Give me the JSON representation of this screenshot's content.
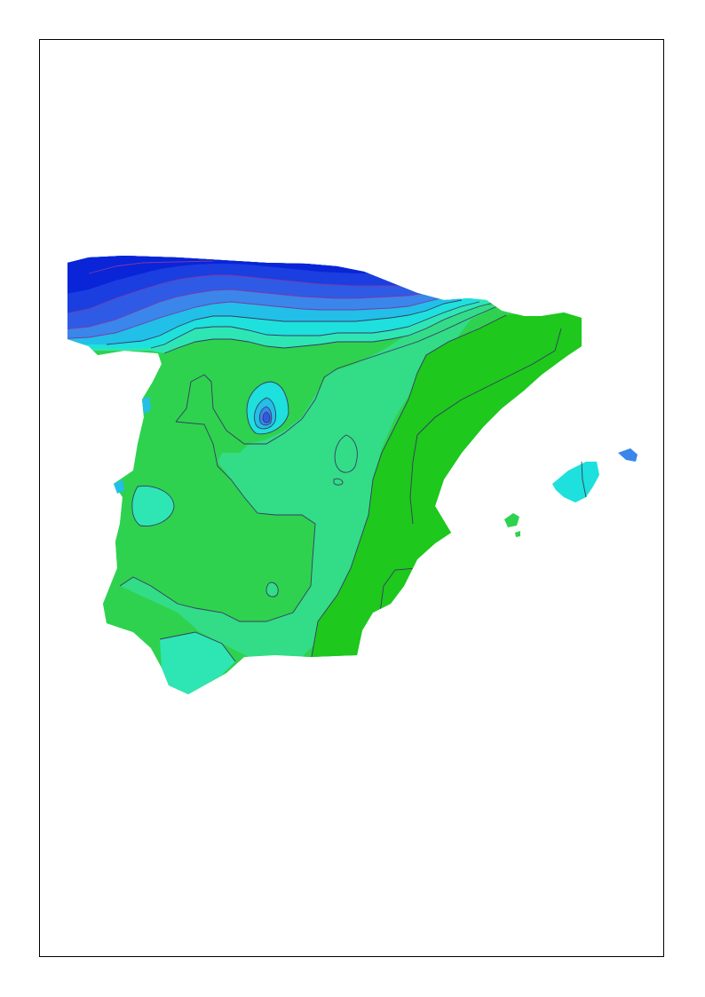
{
  "map": {
    "colors": {
      "background": "#ffffff",
      "frame": "#000000",
      "band_1": "#0a24d8",
      "band_2": "#1a3ee0",
      "band_3": "#2f5ae6",
      "band_4": "#3a86ea",
      "band_5": "#22bfe8",
      "band_6": "#1ee0dc",
      "band_7": "#2ee6b4",
      "band_8": "#33dc86",
      "band_9": "#2ed24e",
      "band_10": "#1ec81c",
      "contour_line": "#3a3a66",
      "north_contour_line": "#7a3aa6"
    }
  }
}
